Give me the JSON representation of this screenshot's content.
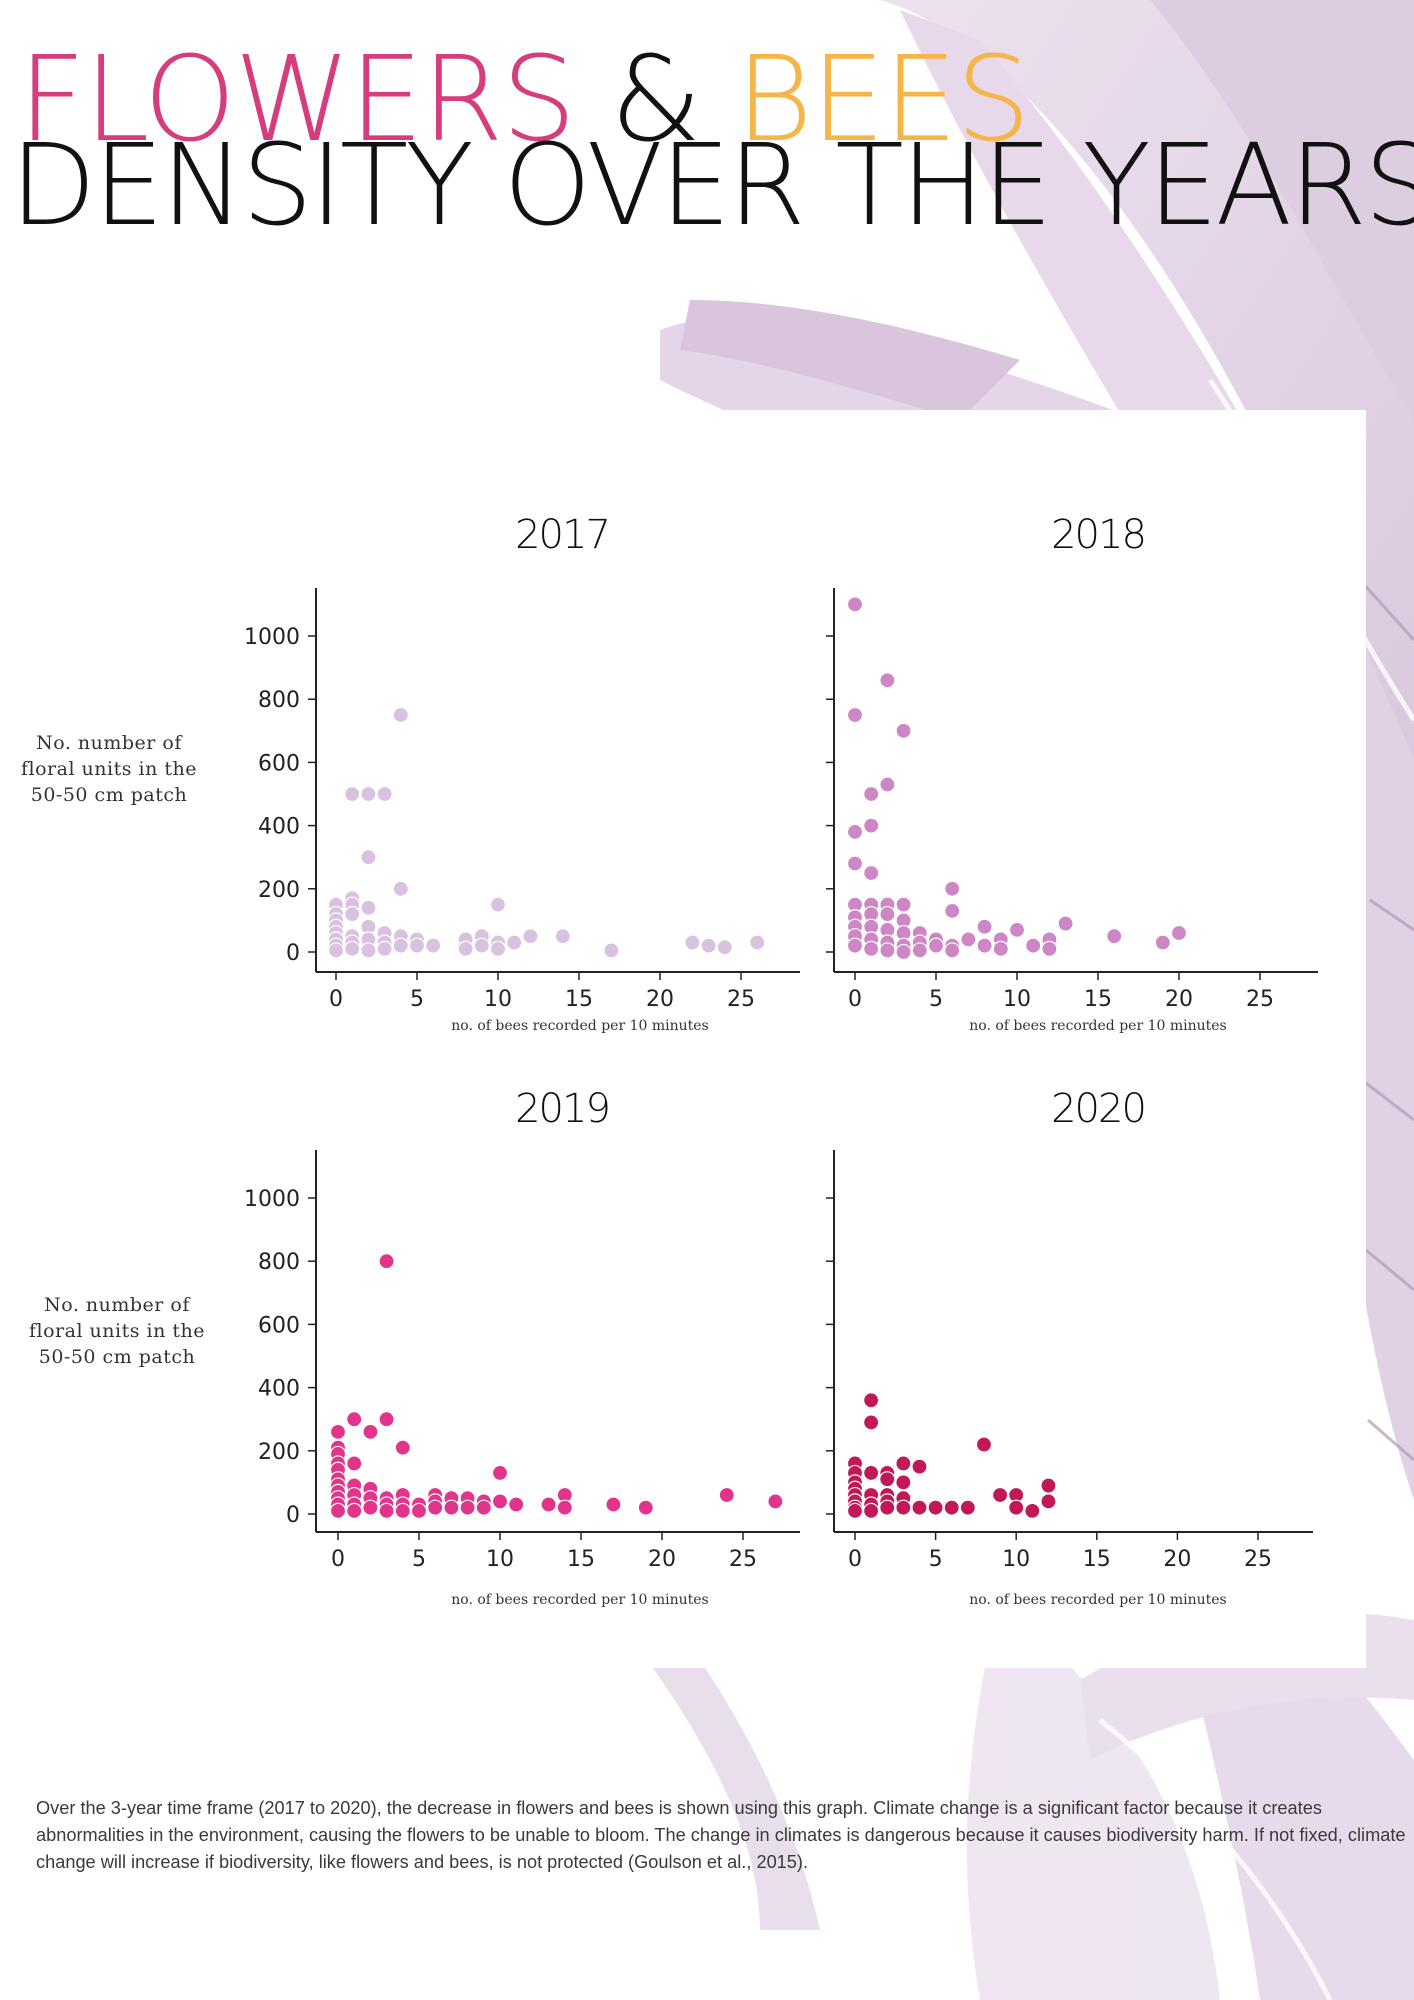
{
  "title": {
    "word_flowers": "FLOWERS",
    "ampersand": "&",
    "word_bees": "BEES",
    "line2": "DENSITY OVER THE YEARS",
    "colors": {
      "flowers": "#d63d7e",
      "ampersand": "#111111",
      "bees": "#f5b548"
    }
  },
  "y_axis_label_text": "No. number of floral units in the 50-50 cm patch",
  "caption": "Over the 3-year time frame (2017 to 2020), the decrease in flowers and bees is shown using this graph. Climate change is a significant factor because it creates abnormalities in the environment, causing the flowers to be unable to bloom. The change in climates is dangerous because it causes biodiversity harm. If not fixed, climate change will increase if biodiversity, like flowers and bees, is not protected  (Goulson et al., 2015).",
  "chart_data": [
    {
      "type": "scatter",
      "title": "2017",
      "xlabel": "no. of bees recorded per 10 minutes",
      "ylabel": "No. number of floral units in the 50-50 cm patch",
      "xlim": [
        -1,
        28.5
      ],
      "ylim": [
        -50,
        1160
      ],
      "xticks": [
        0,
        5,
        10,
        15,
        20,
        25
      ],
      "yticks": [
        0,
        200,
        400,
        600,
        800,
        1000
      ],
      "color": "#d9c2df",
      "points": [
        [
          0,
          150
        ],
        [
          0,
          120
        ],
        [
          0,
          100
        ],
        [
          0,
          80
        ],
        [
          0,
          60
        ],
        [
          0,
          40
        ],
        [
          0,
          20
        ],
        [
          0,
          5
        ],
        [
          1,
          500
        ],
        [
          1,
          170
        ],
        [
          1,
          150
        ],
        [
          1,
          120
        ],
        [
          1,
          50
        ],
        [
          1,
          30
        ],
        [
          1,
          10
        ],
        [
          2,
          500
        ],
        [
          2,
          300
        ],
        [
          2,
          140
        ],
        [
          2,
          80
        ],
        [
          2,
          40
        ],
        [
          2,
          5
        ],
        [
          3,
          500
        ],
        [
          3,
          60
        ],
        [
          3,
          30
        ],
        [
          3,
          10
        ],
        [
          4,
          750
        ],
        [
          4,
          200
        ],
        [
          4,
          50
        ],
        [
          4,
          20
        ],
        [
          5,
          40
        ],
        [
          5,
          20
        ],
        [
          6,
          20
        ],
        [
          8,
          40
        ],
        [
          8,
          10
        ],
        [
          9,
          50
        ],
        [
          9,
          20
        ],
        [
          10,
          150
        ],
        [
          10,
          30
        ],
        [
          10,
          10
        ],
        [
          11,
          30
        ],
        [
          12,
          50
        ],
        [
          14,
          50
        ],
        [
          17,
          5
        ],
        [
          22,
          30
        ],
        [
          23,
          20
        ],
        [
          24,
          15
        ],
        [
          26,
          30
        ]
      ]
    },
    {
      "type": "scatter",
      "title": "2018",
      "xlabel": "no. of bees recorded per 10 minutes",
      "ylabel": "",
      "xlim": [
        -1,
        28.5
      ],
      "ylim": [
        -50,
        1160
      ],
      "xticks": [
        0,
        5,
        10,
        15,
        20,
        25
      ],
      "yticks": [
        0,
        200,
        400,
        600,
        800,
        1000
      ],
      "color": "#cd87c4",
      "points": [
        [
          0,
          1100
        ],
        [
          0,
          750
        ],
        [
          0,
          380
        ],
        [
          0,
          280
        ],
        [
          0,
          150
        ],
        [
          0,
          110
        ],
        [
          0,
          80
        ],
        [
          0,
          50
        ],
        [
          0,
          20
        ],
        [
          1,
          500
        ],
        [
          1,
          400
        ],
        [
          1,
          250
        ],
        [
          1,
          150
        ],
        [
          1,
          120
        ],
        [
          1,
          80
        ],
        [
          1,
          40
        ],
        [
          1,
          10
        ],
        [
          2,
          860
        ],
        [
          2,
          530
        ],
        [
          2,
          150
        ],
        [
          2,
          120
        ],
        [
          2,
          70
        ],
        [
          2,
          30
        ],
        [
          2,
          5
        ],
        [
          3,
          700
        ],
        [
          3,
          150
        ],
        [
          3,
          100
        ],
        [
          3,
          60
        ],
        [
          3,
          20
        ],
        [
          3,
          0
        ],
        [
          4,
          60
        ],
        [
          4,
          30
        ],
        [
          4,
          5
        ],
        [
          5,
          40
        ],
        [
          5,
          20
        ],
        [
          6,
          200
        ],
        [
          6,
          130
        ],
        [
          6,
          20
        ],
        [
          6,
          5
        ],
        [
          7,
          40
        ],
        [
          8,
          80
        ],
        [
          8,
          20
        ],
        [
          9,
          40
        ],
        [
          9,
          10
        ],
        [
          10,
          70
        ],
        [
          11,
          20
        ],
        [
          12,
          40
        ],
        [
          12,
          10
        ],
        [
          13,
          90
        ],
        [
          16,
          50
        ],
        [
          19,
          30
        ],
        [
          20,
          60
        ]
      ]
    },
    {
      "type": "scatter",
      "title": "2019",
      "xlabel": "no. of bees recorded per 10 minutes",
      "ylabel": "No. number of floral units in the 50-50 cm patch",
      "xlim": [
        -1,
        28.5
      ],
      "ylim": [
        -50,
        1160
      ],
      "xticks": [
        0,
        5,
        10,
        15,
        20,
        25
      ],
      "yticks": [
        0,
        200,
        400,
        600,
        800,
        1000
      ],
      "color": "#e0358a",
      "points": [
        [
          0,
          260
        ],
        [
          0,
          210
        ],
        [
          0,
          190
        ],
        [
          0,
          160
        ],
        [
          0,
          140
        ],
        [
          0,
          110
        ],
        [
          0,
          90
        ],
        [
          0,
          70
        ],
        [
          0,
          50
        ],
        [
          0,
          30
        ],
        [
          0,
          10
        ],
        [
          1,
          300
        ],
        [
          1,
          160
        ],
        [
          1,
          90
        ],
        [
          1,
          60
        ],
        [
          1,
          30
        ],
        [
          1,
          10
        ],
        [
          2,
          260
        ],
        [
          2,
          80
        ],
        [
          2,
          50
        ],
        [
          2,
          20
        ],
        [
          3,
          800
        ],
        [
          3,
          300
        ],
        [
          3,
          50
        ],
        [
          3,
          30
        ],
        [
          3,
          10
        ],
        [
          4,
          210
        ],
        [
          4,
          60
        ],
        [
          4,
          30
        ],
        [
          4,
          10
        ],
        [
          5,
          30
        ],
        [
          5,
          10
        ],
        [
          6,
          60
        ],
        [
          6,
          40
        ],
        [
          6,
          20
        ],
        [
          7,
          50
        ],
        [
          7,
          20
        ],
        [
          8,
          50
        ],
        [
          8,
          20
        ],
        [
          9,
          40
        ],
        [
          9,
          20
        ],
        [
          10,
          130
        ],
        [
          10,
          40
        ],
        [
          11,
          30
        ],
        [
          13,
          30
        ],
        [
          14,
          60
        ],
        [
          14,
          20
        ],
        [
          17,
          30
        ],
        [
          19,
          20
        ],
        [
          24,
          60
        ],
        [
          27,
          40
        ]
      ]
    },
    {
      "type": "scatter",
      "title": "2020",
      "xlabel": "no. of bees recorded per 10 minutes",
      "ylabel": "",
      "xlim": [
        -1,
        28.5
      ],
      "ylim": [
        -50,
        1160
      ],
      "xticks": [
        0,
        5,
        10,
        15,
        20,
        25
      ],
      "yticks": [
        0,
        200,
        400,
        600,
        800,
        1000
      ],
      "color": "#c01858",
      "points": [
        [
          0,
          160
        ],
        [
          0,
          130
        ],
        [
          0,
          100
        ],
        [
          0,
          80
        ],
        [
          0,
          60
        ],
        [
          0,
          40
        ],
        [
          0,
          20
        ],
        [
          0,
          10
        ],
        [
          1,
          360
        ],
        [
          1,
          290
        ],
        [
          1,
          130
        ],
        [
          1,
          60
        ],
        [
          1,
          30
        ],
        [
          1,
          10
        ],
        [
          2,
          130
        ],
        [
          2,
          110
        ],
        [
          2,
          60
        ],
        [
          2,
          40
        ],
        [
          2,
          20
        ],
        [
          3,
          160
        ],
        [
          3,
          100
        ],
        [
          3,
          50
        ],
        [
          3,
          20
        ],
        [
          4,
          150
        ],
        [
          4,
          20
        ],
        [
          5,
          20
        ],
        [
          6,
          20
        ],
        [
          7,
          20
        ],
        [
          8,
          220
        ],
        [
          9,
          60
        ],
        [
          10,
          60
        ],
        [
          10,
          20
        ],
        [
          11,
          10
        ],
        [
          12,
          90
        ],
        [
          12,
          40
        ]
      ]
    }
  ]
}
